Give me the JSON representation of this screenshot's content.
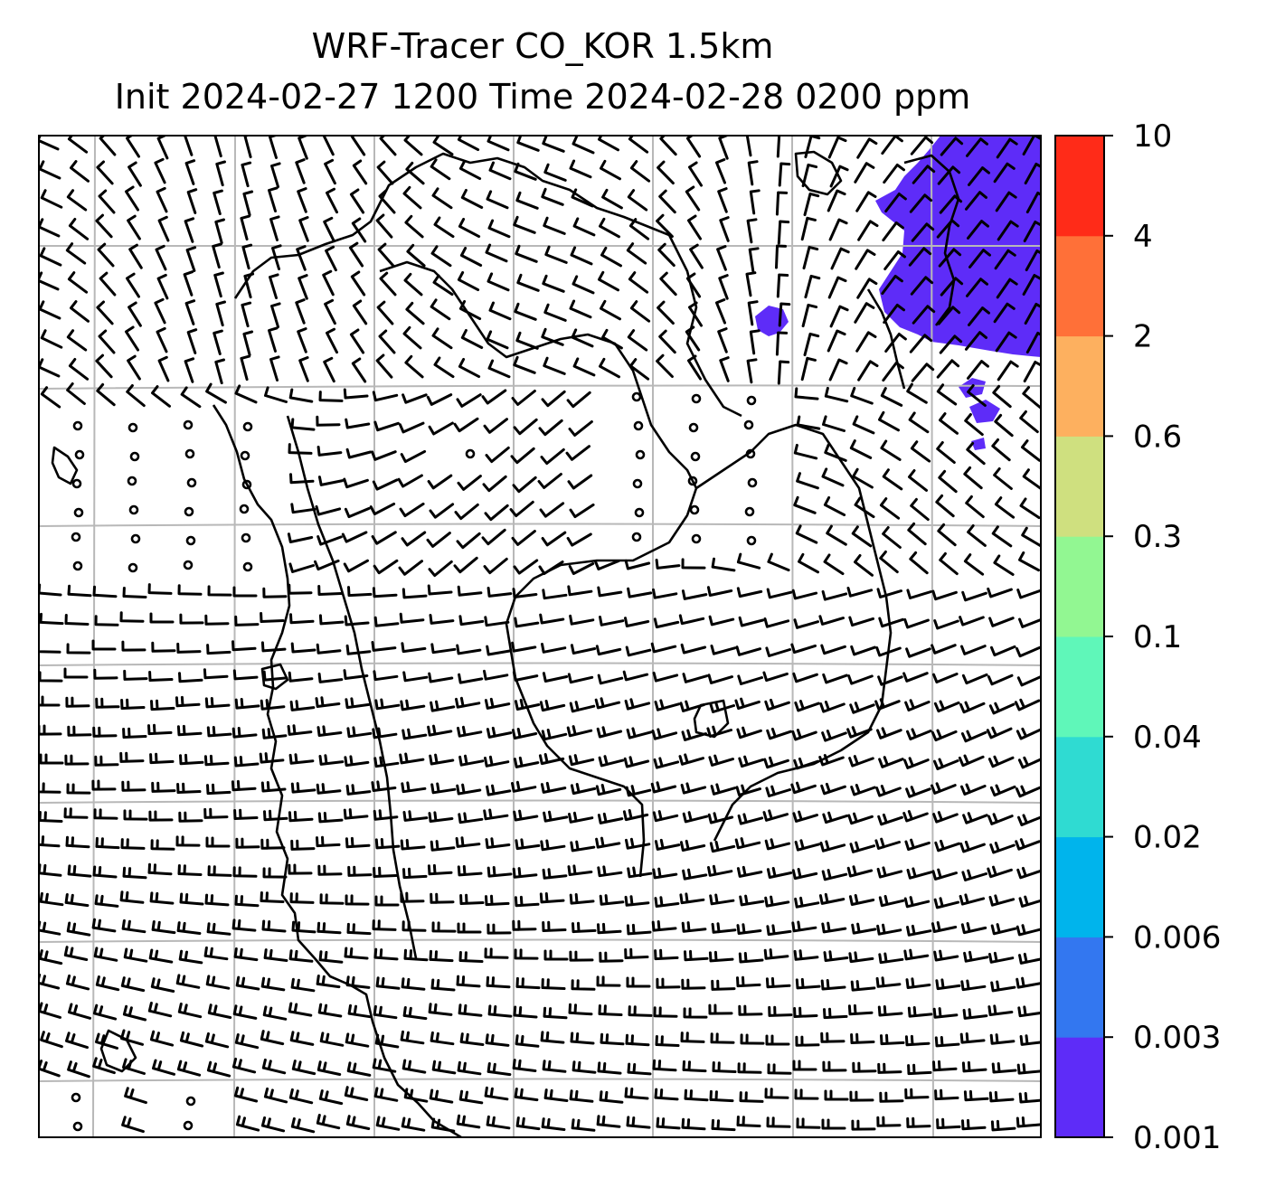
{
  "title": {
    "line1": "WRF-Tracer CO_KOR 1.5km",
    "line2": "Init 2024-02-27 1200 Time 2024-02-28 0200 ppm"
  },
  "colorbar": {
    "levels": [
      "0.001",
      "0.003",
      "0.006",
      "0.02",
      "0.04",
      "0.1",
      "0.3",
      "0.6",
      "2",
      "4",
      "10"
    ],
    "colors": [
      "#5e2cf8",
      "#3377f0",
      "#00b4ec",
      "#2fdbd2",
      "#5ff7b9",
      "#92f792",
      "#cfe07f",
      "#fdb05f",
      "#ff7038",
      "#ff2b18"
    ]
  },
  "map": {
    "variable": "CO_KOR tracer",
    "units": "ppm",
    "gridlines": true,
    "features": [
      "coastlines",
      "wind-barbs",
      "tracer-shading"
    ],
    "plume_color": "#5e2cf8"
  }
}
